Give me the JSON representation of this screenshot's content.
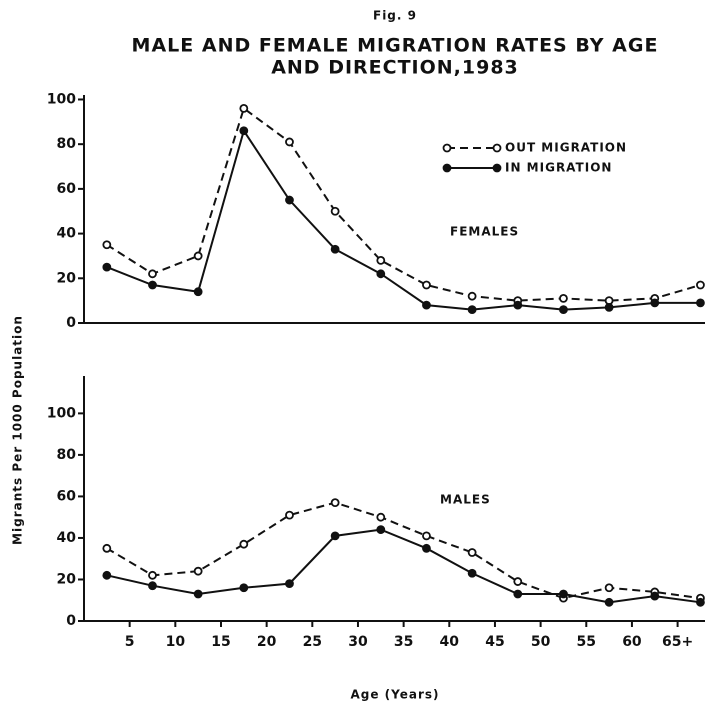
{
  "chart_data": [
    {
      "type": "line",
      "fig_label": "Fig. 9",
      "title": [
        "MALE AND FEMALE MIGRATION RATES BY AGE",
        "AND DIRECTION,1983"
      ],
      "ylabel": "Migrants Per 1000 Population",
      "annotation": "FEMALES",
      "legend": "upper right",
      "x": [
        2.5,
        7.5,
        12.5,
        17.5,
        22.5,
        27.5,
        32.5,
        37.5,
        42.5,
        47.5,
        52.5,
        57.5,
        62.5,
        67.5
      ],
      "xlim": [
        0,
        68
      ],
      "ylim": [
        0,
        102
      ],
      "yticks": [
        0,
        20,
        40,
        60,
        80,
        100
      ],
      "series": [
        {
          "name": "OUT MIGRATION",
          "color": "#111111",
          "style": "dashed",
          "marker": "open",
          "values": [
            35,
            22,
            30,
            96,
            81,
            50,
            28,
            17,
            12,
            10,
            11,
            10,
            11,
            17
          ]
        },
        {
          "name": "IN MIGRATION",
          "color": "#111111",
          "style": "solid",
          "marker": "filled",
          "values": [
            25,
            17,
            14,
            86,
            55,
            33,
            22,
            8,
            6,
            8,
            6,
            7,
            9,
            9
          ]
        }
      ]
    },
    {
      "type": "line",
      "annotation": "MALES",
      "xlabel": "Age (Years)",
      "x": [
        2.5,
        7.5,
        12.5,
        17.5,
        22.5,
        27.5,
        32.5,
        37.5,
        42.5,
        47.5,
        52.5,
        57.5,
        62.5,
        67.5
      ],
      "xlim": [
        0,
        68
      ],
      "xticks": [
        5,
        10,
        15,
        20,
        25,
        30,
        35,
        40,
        45,
        50,
        55,
        60,
        {
          "value": 65,
          "label": "65+"
        }
      ],
      "ylim": [
        0,
        118
      ],
      "yticks": [
        0,
        20,
        40,
        60,
        80,
        100
      ],
      "series": [
        {
          "name": "OUT MIGRATION",
          "color": "#111111",
          "style": "dashed",
          "marker": "open",
          "values": [
            35,
            22,
            24,
            37,
            51,
            57,
            50,
            41,
            33,
            19,
            11,
            16,
            14,
            11
          ]
        },
        {
          "name": "IN MIGRATION",
          "color": "#111111",
          "style": "solid",
          "marker": "filled",
          "values": [
            22,
            17,
            13,
            16,
            18,
            41,
            44,
            35,
            23,
            13,
            13,
            9,
            12,
            9
          ]
        }
      ]
    }
  ]
}
